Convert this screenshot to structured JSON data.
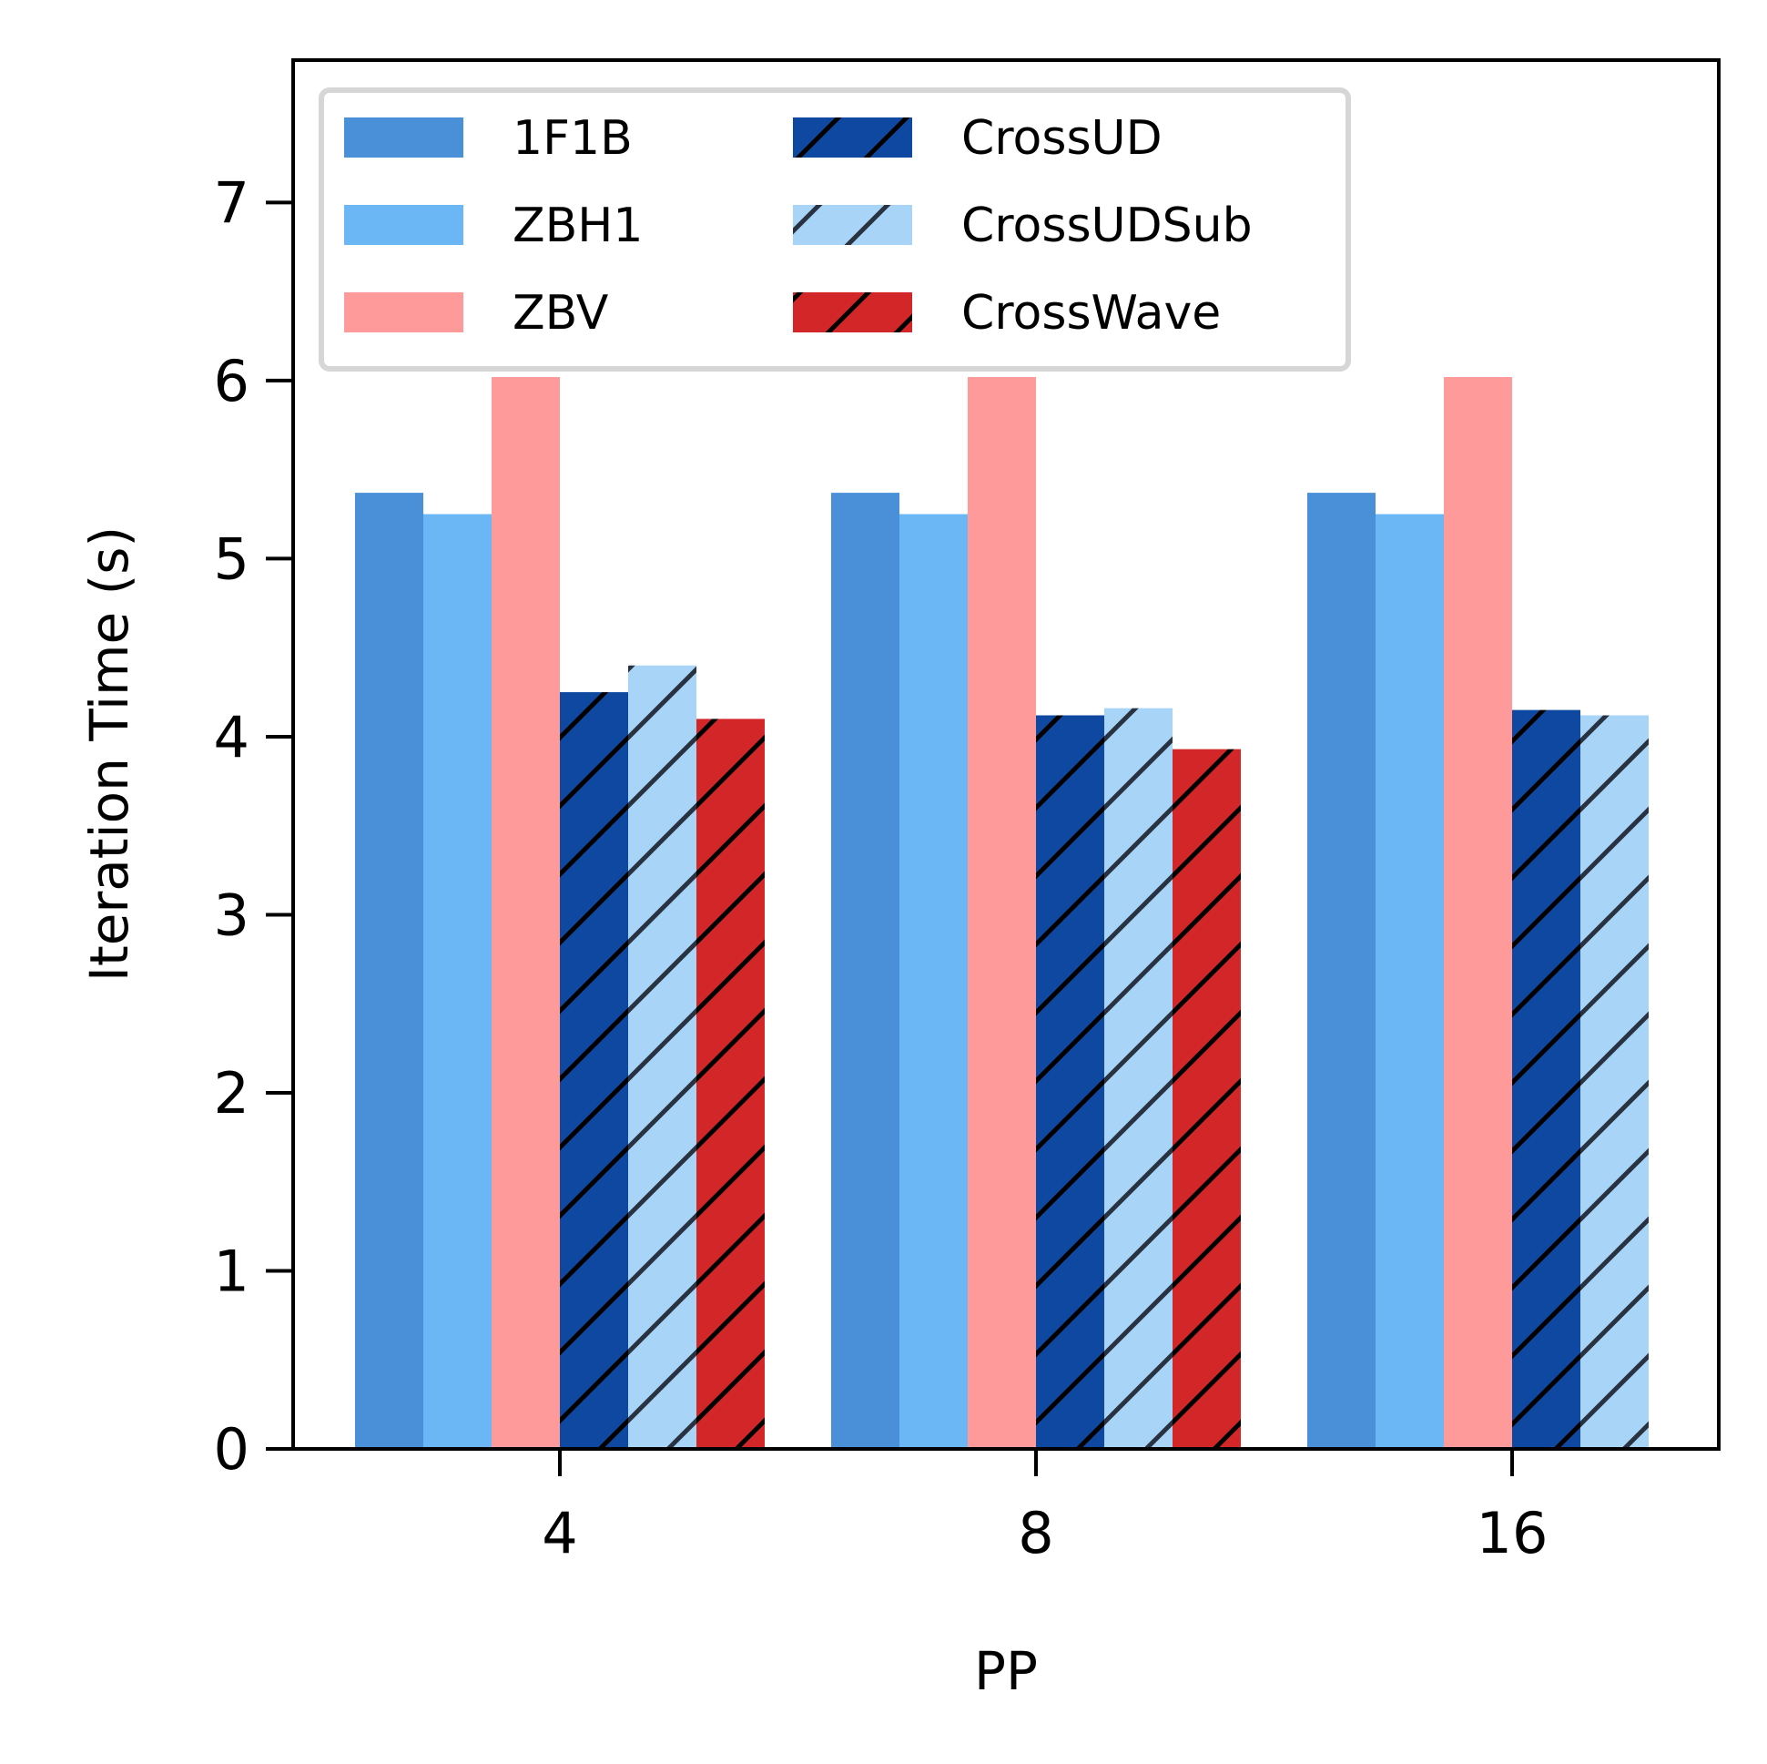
{
  "chart_data": {
    "type": "bar",
    "title": "",
    "xlabel": "PP",
    "ylabel": "Iteration Time (s)",
    "categories": [
      "4",
      "8",
      "16"
    ],
    "ylim": [
      0,
      7.8
    ],
    "yticks": [
      0,
      1,
      2,
      3,
      4,
      5,
      6,
      7
    ],
    "legend_position": "upper-left",
    "legend_columns": 2,
    "series": [
      {
        "name": "1F1B",
        "values": [
          5.37,
          5.37,
          5.37
        ],
        "color": "#4a90d9",
        "hatch": false,
        "hatch_color": ""
      },
      {
        "name": "ZBH1",
        "values": [
          5.25,
          5.25,
          5.25
        ],
        "color": "#6bb7f5",
        "hatch": false,
        "hatch_color": ""
      },
      {
        "name": "ZBV",
        "values": [
          6.02,
          6.02,
          6.02
        ],
        "color": "#fe9a9a",
        "hatch": false,
        "hatch_color": ""
      },
      {
        "name": "CrossUD",
        "values": [
          4.25,
          4.12,
          4.15
        ],
        "color": "#0e48a0",
        "hatch": true,
        "hatch_color": "#000000"
      },
      {
        "name": "CrossUDSub",
        "values": [
          4.4,
          4.16,
          4.12
        ],
        "color": "#a8d4f7",
        "hatch": true,
        "hatch_color": "#283240"
      },
      {
        "name": "CrossWave",
        "values": [
          4.1,
          3.93,
          null
        ],
        "color": "#d32628",
        "hatch": true,
        "hatch_color": "#000000"
      }
    ]
  }
}
